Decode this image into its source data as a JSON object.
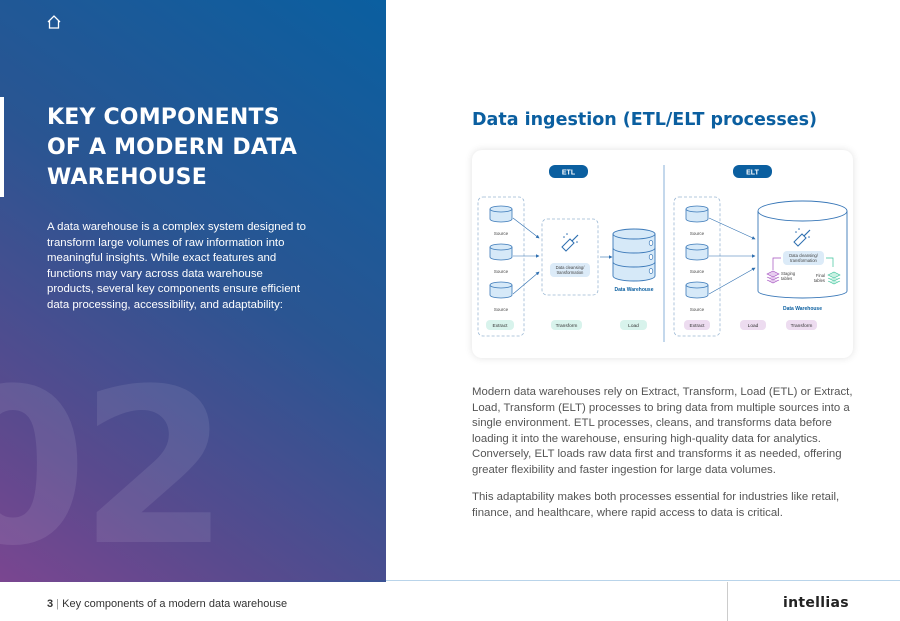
{
  "left": {
    "title_lines": [
      "KEY COMPONENTS",
      "OF A MODERN DATA",
      "WAREHOUSE"
    ],
    "paragraph": "A data warehouse is a complex system designed to transform large volumes of raw information into meaningful insights. While exact features and functions may vary across data warehouse products, several key components ensure efficient data processing, accessibility, and adaptability:",
    "section_number": "02",
    "gradient_colors": [
      "#0a5fa0",
      "#7a4690"
    ]
  },
  "right": {
    "title": "Data ingestion (ETL/ELT processes)",
    "paragraphs": [
      "Modern data warehouses rely on Extract, Transform, Load (ETL) or Extract, Load, Transform (ELT) processes to bring data from multiple sources into a single environment. ETL processes, cleans, and transforms data before loading it into the warehouse, ensuring high-quality data for analytics. Conversely, ELT loads raw data first and transforms it as needed, offering greater flexibility and faster ingestion for large data volumes.",
      "This adaptability makes both processes essential for industries like retail, finance, and healthcare, where rapid access to data is critical."
    ]
  },
  "diagram": {
    "etl": {
      "label": "ETL",
      "source_label": "Source",
      "cleansing_line1": "Data cleansing/",
      "cleansing_line2": "transformation",
      "warehouse_label": "Data Warehouse",
      "stages": [
        "Extract",
        "Transform",
        "Load"
      ]
    },
    "elt": {
      "label": "ELT",
      "source_label": "Source",
      "cleansing_line1": "Data cleansing/",
      "cleansing_line2": "transformation",
      "staging_line1": "Staging",
      "staging_line2": "tables",
      "final_line1": "Final",
      "final_line2": "tables",
      "warehouse_label": "Data Warehouse",
      "stages": [
        "Extract",
        "Load",
        "Transform"
      ]
    },
    "colors": {
      "accent": "#0b5fa0",
      "green_pill": "#d8f3ec",
      "purple_pill": "#eddcf0"
    }
  },
  "footer": {
    "page_number": "3",
    "page_title": "Key components of a modern data warehouse",
    "logo": "intellias"
  }
}
